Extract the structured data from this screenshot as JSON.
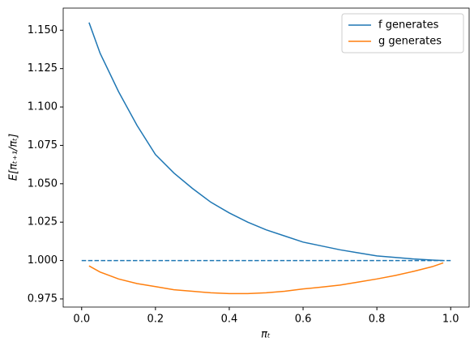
{
  "chart_data": {
    "type": "line",
    "x_label": "πₜ",
    "y_label": "E[πₜ₊₁/πₜ]",
    "x": [
      0.02,
      0.05,
      0.1,
      0.15,
      0.2,
      0.25,
      0.3,
      0.35,
      0.4,
      0.45,
      0.5,
      0.55,
      0.6,
      0.65,
      0.7,
      0.75,
      0.8,
      0.85,
      0.9,
      0.95,
      0.98
    ],
    "series": [
      {
        "name": "f generates",
        "color": "#1f77b4",
        "values": [
          1.155,
          1.135,
          1.11,
          1.088,
          1.069,
          1.057,
          1.047,
          1.038,
          1.031,
          1.025,
          1.02,
          1.016,
          1.012,
          1.0095,
          1.007,
          1.005,
          1.003,
          1.002,
          1.001,
          1.0003,
          1.0
        ]
      },
      {
        "name": "g generates",
        "color": "#ff7f0e",
        "values": [
          0.9965,
          0.9925,
          0.988,
          0.985,
          0.983,
          0.981,
          0.98,
          0.979,
          0.9785,
          0.9785,
          0.979,
          0.98,
          0.9815,
          0.9827,
          0.984,
          0.986,
          0.988,
          0.9903,
          0.993,
          0.996,
          0.9985
        ]
      },
      {
        "color": "#1f77b4",
        "dashed": true,
        "x": [
          0,
          1
        ],
        "values": [
          1.0,
          1.0
        ]
      }
    ],
    "xlim": [
      -0.05,
      1.05
    ],
    "ylim": [
      0.9697,
      1.1644
    ],
    "xticks": [
      {
        "value": 0,
        "label": "0.0"
      },
      0.2,
      0.4,
      0.6,
      0.8,
      {
        "value": 1,
        "label": "1.0"
      }
    ],
    "yticks": [
      0.975,
      {
        "value": 1.0,
        "label": "1.000"
      },
      1.025,
      {
        "value": 1.05,
        "label": "1.050"
      },
      1.075,
      {
        "value": 1.1,
        "label": "1.100"
      },
      1.125,
      {
        "value": 1.15,
        "label": "1.150"
      }
    ],
    "legend": "upper right"
  }
}
